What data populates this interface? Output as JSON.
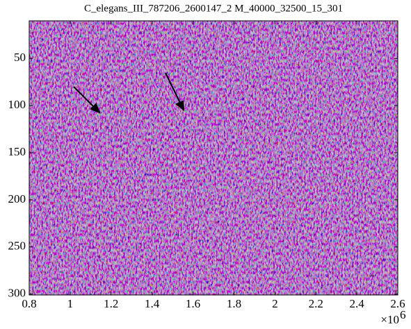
{
  "chart_data": {
    "type": "image",
    "title": "C_elegans_III_787206_2600147_2 M_40000_32500_15_301",
    "xlim": [
      800000,
      2600000
    ],
    "xticks": [
      {
        "value": 800000,
        "label": "0.8"
      },
      {
        "value": 1000000,
        "label": "1"
      },
      {
        "value": 1200000,
        "label": "1.2"
      },
      {
        "value": 1400000,
        "label": "1.4"
      },
      {
        "value": 1600000,
        "label": "1.6"
      },
      {
        "value": 1800000,
        "label": "1.8"
      },
      {
        "value": 2000000,
        "label": "2"
      },
      {
        "value": 2200000,
        "label": "2.2"
      },
      {
        "value": 2400000,
        "label": "2.4"
      },
      {
        "value": 2600000,
        "label": "2.6"
      }
    ],
    "x_multiplier": {
      "base": "×10",
      "exponent": "6"
    },
    "ylim": [
      10,
      301
    ],
    "yticks": [
      50,
      100,
      150,
      200,
      250,
      300
    ],
    "y_reversed": true
  }
}
